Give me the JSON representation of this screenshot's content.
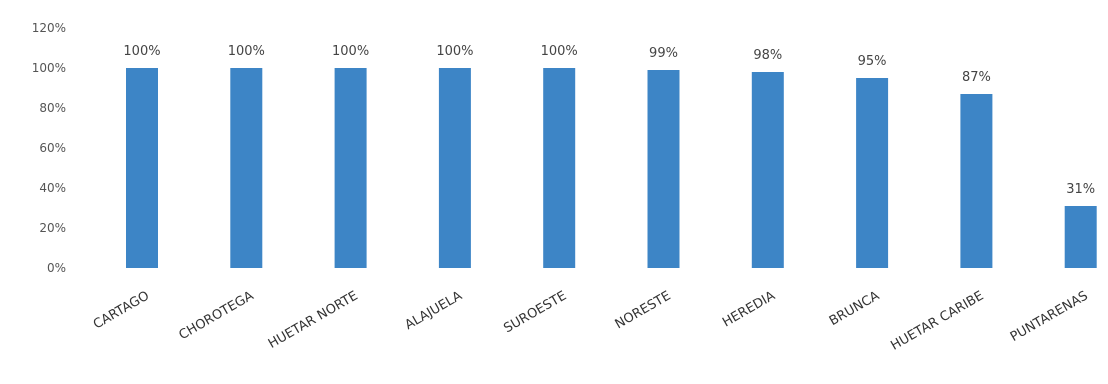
{
  "chart_data": {
    "type": "bar",
    "title": "",
    "xlabel": "",
    "ylabel": "",
    "categories": [
      "CARTAGO",
      "CHOROTEGA",
      "HUETAR NORTE",
      "ALAJUELA",
      "SUROESTE",
      "NORESTE",
      "HEREDIA",
      "BRUNCA",
      "HUETAR CARIBE",
      "PUNTARENAS"
    ],
    "values": [
      100,
      100,
      100,
      100,
      100,
      99,
      98,
      95,
      87,
      31
    ],
    "data_labels": [
      "100%",
      "100%",
      "100%",
      "100%",
      "100%",
      "99%",
      "98%",
      "95%",
      "87%",
      "31%"
    ],
    "ylim": [
      0,
      120
    ],
    "yticks": [
      0,
      20,
      40,
      60,
      80,
      100,
      120
    ],
    "ytick_labels": [
      "0%",
      "20%",
      "40%",
      "60%",
      "80%",
      "100%",
      "120%"
    ],
    "grid": false,
    "legend": "none",
    "bar_color": "#3d85c6"
  }
}
